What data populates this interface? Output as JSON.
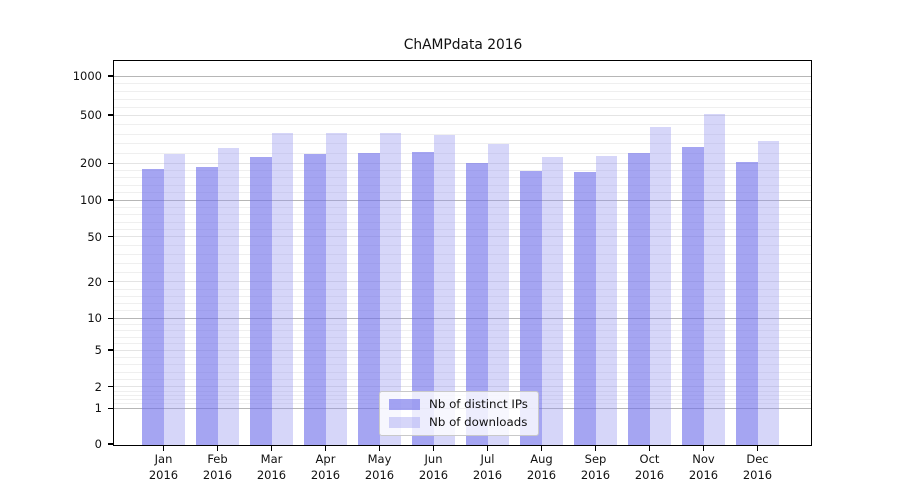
{
  "chart_data": {
    "type": "bar",
    "title": "ChAMPdata 2016",
    "categories": [
      "Jan",
      "Feb",
      "Mar",
      "Apr",
      "May",
      "Jun",
      "Jul",
      "Aug",
      "Sep",
      "Oct",
      "Nov",
      "Dec"
    ],
    "category_sublabel": "2016",
    "series": [
      {
        "name": "Nb of distinct IPs",
        "color": "rgba(113,113,234,0.63)",
        "values": [
          180,
          186,
          225,
          238,
          245,
          250,
          200,
          172,
          170,
          245,
          275,
          205
        ]
      },
      {
        "name": "Nb of downloads",
        "color": "rgba(147,147,240,0.38)",
        "values": [
          238,
          265,
          355,
          355,
          355,
          345,
          290,
          225,
          230,
          400,
          505,
          305
        ]
      }
    ],
    "yticks": [
      0,
      1,
      2,
      5,
      10,
      20,
      50,
      100,
      200,
      500,
      1000
    ],
    "yscale": "log-like with 0 baseline",
    "ylim": [
      0,
      1400
    ],
    "grid": "horizontal major + minor",
    "legend_position": "lower center"
  },
  "colors": {
    "major_grid": "#b6b6b6",
    "labeled_minor_grid": "#e4e4e4",
    "minor_grid": "#efefef",
    "spine": "#000000"
  }
}
